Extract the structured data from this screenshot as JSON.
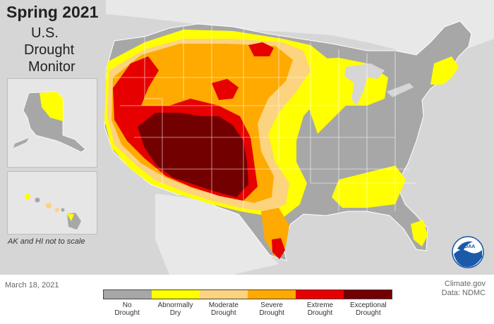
{
  "title": {
    "season": "Spring 2021",
    "line2": "U.S.",
    "line3": "Drought",
    "line4": "Monitor"
  },
  "inset_note": "AK and HI not to scale",
  "date": "March 18, 2021",
  "credit": {
    "site": "Climate.gov",
    "data_source": "Data: NDMC"
  },
  "logo_text": "NOAA",
  "legend": [
    {
      "line1": "No",
      "line2": "Drought",
      "color": "#a7a7a7"
    },
    {
      "line1": "Abnormally",
      "line2": "Dry",
      "color": "#ffff00"
    },
    {
      "line1": "Moderate",
      "line2": "Drought",
      "color": "#fcd37f"
    },
    {
      "line1": "Severe",
      "line2": "Drought",
      "color": "#ffaa00"
    },
    {
      "line1": "Extreme",
      "line2": "Drought",
      "color": "#e60000"
    },
    {
      "line1": "Exceptional",
      "line2": "Drought",
      "color": "#730000"
    }
  ],
  "colors": {
    "background": "#d6d6d6",
    "land_outside": "#e8e8e8",
    "noaa_blue": "#1a5aa8"
  }
}
